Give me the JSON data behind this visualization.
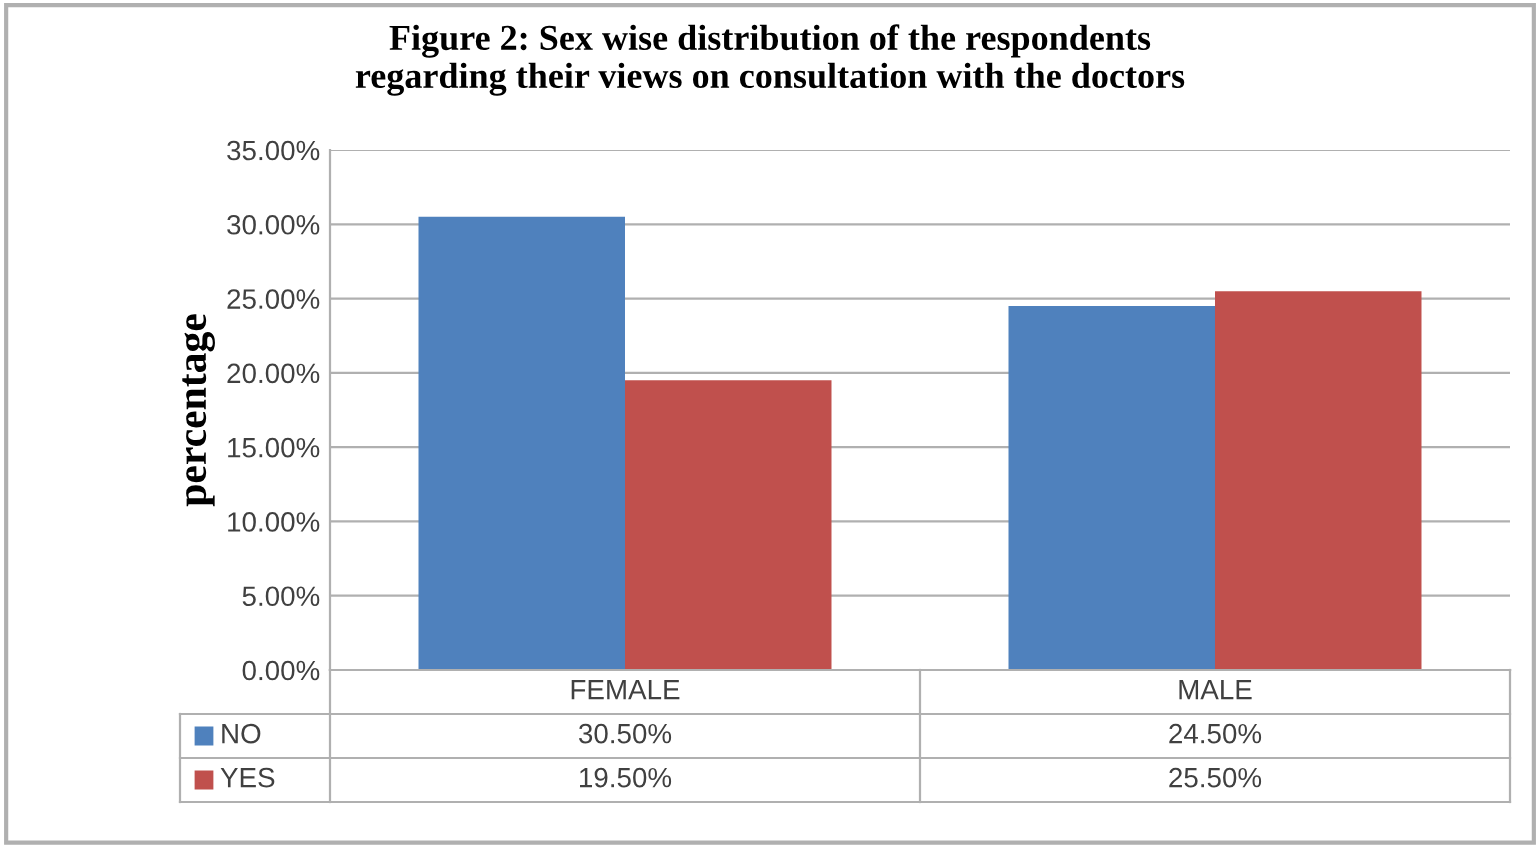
{
  "chart_data": {
    "type": "bar",
    "title": "Figure 2: Sex wise distribution of the respondents\nregarding their views on consultation with the doctors",
    "ylabel": "percentage",
    "categories": [
      "FEMALE",
      "MALE"
    ],
    "series": [
      {
        "name": "NO",
        "color": "#4f81bd",
        "values": [
          30.5,
          24.5
        ],
        "value_labels": [
          "30.50%",
          "24.50%"
        ]
      },
      {
        "name": "YES",
        "color": "#c0504d",
        "values": [
          19.5,
          25.5
        ],
        "value_labels": [
          "19.50%",
          "25.50%"
        ]
      }
    ],
    "ylim": [
      0,
      35
    ],
    "yticks": [
      {
        "value": 0,
        "label": "0.00%"
      },
      {
        "value": 5,
        "label": "5.00%"
      },
      {
        "value": 10,
        "label": "10.00%"
      },
      {
        "value": 15,
        "label": "15.00%"
      },
      {
        "value": 20,
        "label": "20.00%"
      },
      {
        "value": 25,
        "label": "25.00%"
      },
      {
        "value": 30,
        "label": "30.00%"
      },
      {
        "value": 35,
        "label": "35.00%"
      }
    ],
    "grid": "y",
    "legend": "bottom"
  }
}
